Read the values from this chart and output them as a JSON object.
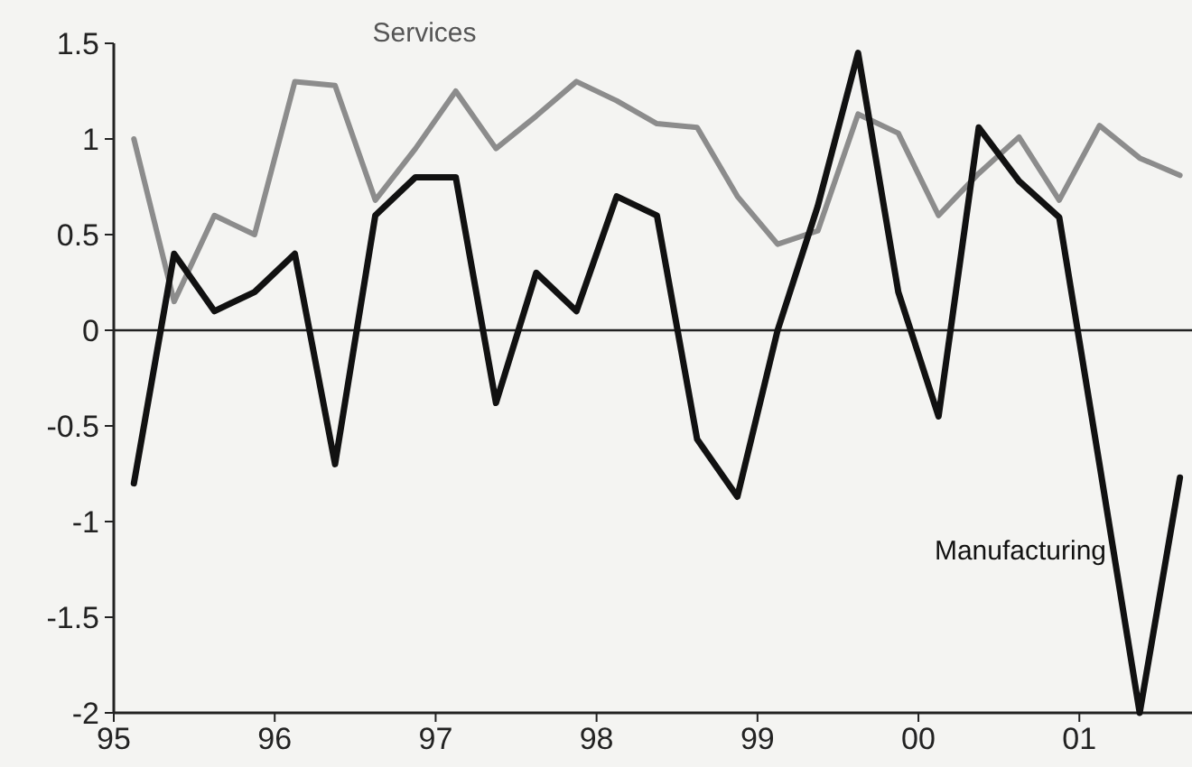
{
  "chart_data": {
    "type": "line",
    "x": [
      1995.125,
      1995.375,
      1995.625,
      1995.875,
      1996.125,
      1996.375,
      1996.625,
      1996.875,
      1997.125,
      1997.375,
      1997.625,
      1997.875,
      1998.125,
      1998.375,
      1998.625,
      1998.875,
      1999.125,
      1999.375,
      1999.625,
      1999.875,
      2000.125,
      2000.375,
      2000.625,
      2000.875,
      2001.125,
      2001.375,
      2001.625
    ],
    "series": [
      {
        "name": "Services",
        "color": "#8c8c8c",
        "values": [
          1.0,
          0.15,
          0.6,
          0.5,
          1.3,
          1.28,
          0.68,
          0.95,
          1.25,
          0.95,
          1.12,
          1.3,
          1.2,
          1.08,
          1.06,
          0.7,
          0.45,
          0.52,
          1.13,
          1.03,
          0.6,
          0.82,
          1.01,
          0.68,
          1.07,
          0.9,
          0.81
        ]
      },
      {
        "name": "Manufacturing",
        "color": "#111111",
        "values": [
          -0.8,
          0.4,
          0.1,
          0.2,
          0.4,
          -0.7,
          0.6,
          0.8,
          0.8,
          -0.38,
          0.3,
          0.1,
          0.7,
          0.6,
          -0.57,
          -0.87,
          0.0,
          0.65,
          1.45,
          0.2,
          -0.45,
          1.06,
          0.78,
          0.59,
          -0.7,
          -2.0,
          -0.77
        ]
      }
    ],
    "xlim": [
      1995,
      2001.7
    ],
    "xticks": [
      {
        "value": 1995,
        "label": "95"
      },
      {
        "value": 1996,
        "label": "96"
      },
      {
        "value": 1997,
        "label": "97"
      },
      {
        "value": 1998,
        "label": "98"
      },
      {
        "value": 1999,
        "label": "99"
      },
      {
        "value": 2000,
        "label": "00"
      },
      {
        "value": 2001,
        "label": "01"
      }
    ],
    "ylim": [
      -2,
      1.5
    ],
    "yticks": [
      -2,
      -1.5,
      -1,
      -0.5,
      0,
      0.5,
      1,
      1.5
    ],
    "ref_lines": [
      {
        "axis": "y",
        "value": 0
      }
    ],
    "marker": "none",
    "line_style": "solid"
  }
}
